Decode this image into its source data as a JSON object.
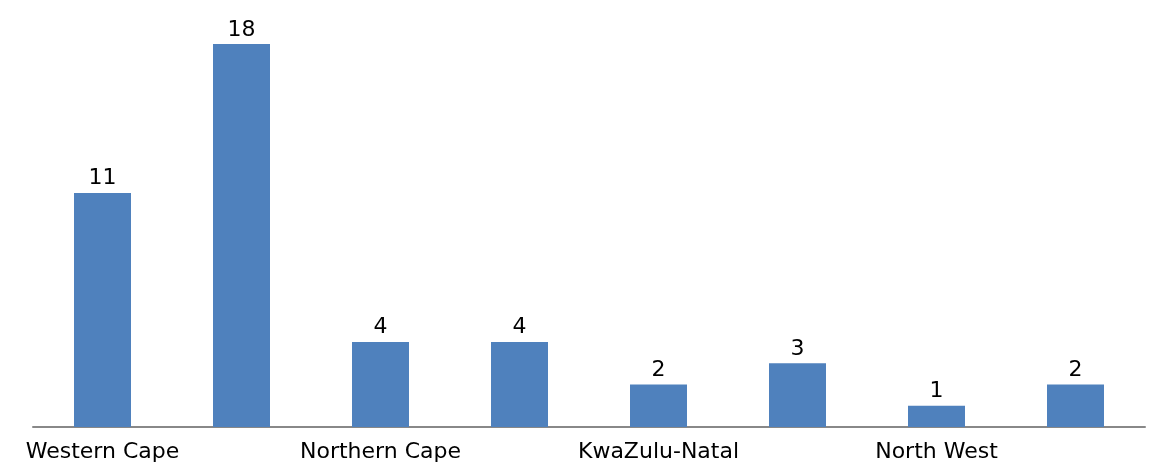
{
  "chart_data": {
    "type": "bar",
    "categories": [
      "Western Cape",
      null,
      "Northern Cape",
      null,
      "KwaZulu-Natal",
      null,
      "North West",
      null
    ],
    "values": [
      11,
      18,
      4,
      4,
      2,
      3,
      1,
      2
    ],
    "color": "#4f81bd",
    "data_labels": true
  }
}
